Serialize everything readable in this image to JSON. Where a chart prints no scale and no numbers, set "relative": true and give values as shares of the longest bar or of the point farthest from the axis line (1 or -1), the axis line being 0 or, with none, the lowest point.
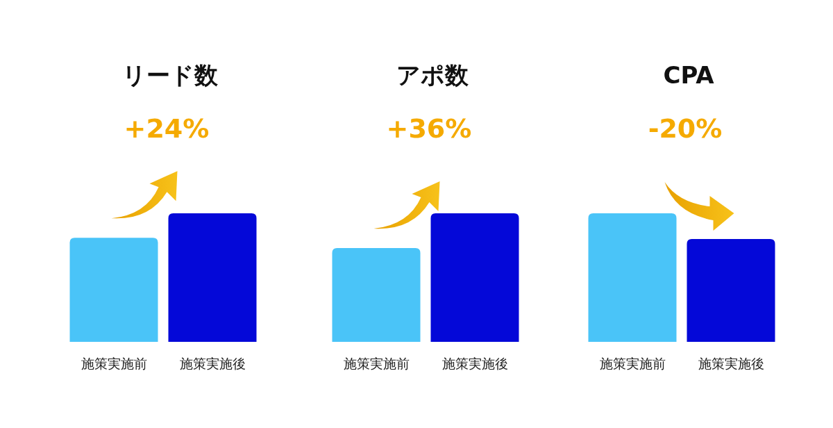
{
  "chart_data": [
    {
      "type": "bar",
      "title": "リード数",
      "subtitle": "+24%",
      "categories": [
        "施策実施前",
        "施策実施後"
      ],
      "values": [
        0.81,
        1
      ],
      "colors": [
        "#4ac4f8",
        "#0408d8"
      ],
      "relative": true
    },
    {
      "type": "bar",
      "title": "アポ数",
      "subtitle": "+36%",
      "categories": [
        "施策実施前",
        "施策実施後"
      ],
      "values": [
        0.73,
        1
      ],
      "colors": [
        "#4ac4f8",
        "#0408d8"
      ],
      "relative": true
    },
    {
      "type": "bar",
      "title": "CPA",
      "subtitle": "-20%",
      "categories": [
        "施策実施前",
        "施策実施後"
      ],
      "values": [
        1,
        0.8
      ],
      "colors": [
        "#4ac4f8",
        "#0408d8"
      ],
      "relative": true
    }
  ]
}
